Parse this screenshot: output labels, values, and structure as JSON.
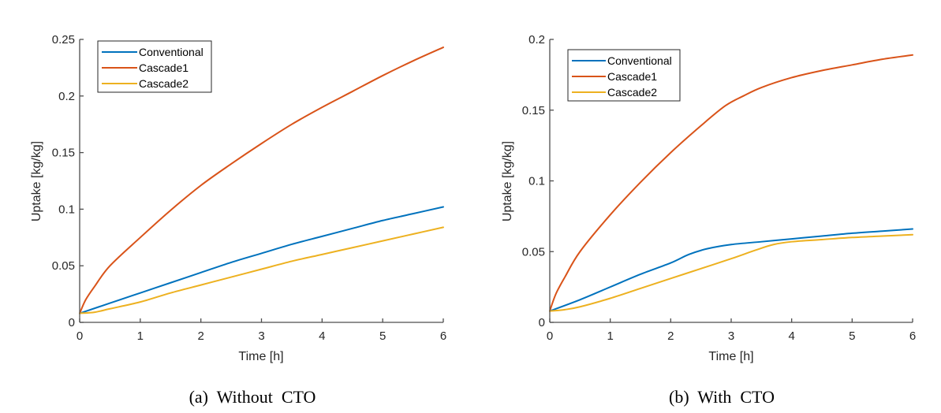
{
  "chart_data": [
    {
      "type": "line",
      "caption": "(a)  Without  CTO",
      "xlabel": "Time [h]",
      "ylabel": "Uptake [kg/kg]",
      "xlim": [
        0,
        6
      ],
      "ylim": [
        0,
        0.25
      ],
      "xticks": [
        0,
        1,
        2,
        3,
        4,
        5,
        6
      ],
      "xtick_labels": [
        "0",
        "1",
        "2",
        "3",
        "4",
        "5",
        "6"
      ],
      "yticks": [
        0,
        0.05,
        0.1,
        0.15,
        0.2,
        0.25
      ],
      "ytick_labels": [
        "0",
        "0.05",
        "0.1",
        "0.15",
        "0.2",
        "0.25"
      ],
      "grid": false,
      "legend_position": "top-left",
      "series": [
        {
          "name": "Conventional",
          "color": "#0072BD",
          "x": [
            0,
            0.5,
            1,
            1.5,
            2,
            2.5,
            3,
            3.5,
            4,
            4.5,
            5,
            5.5,
            6
          ],
          "values": [
            0.008,
            0.017,
            0.026,
            0.035,
            0.044,
            0.053,
            0.061,
            0.069,
            0.076,
            0.083,
            0.09,
            0.096,
            0.102
          ]
        },
        {
          "name": "Cascade1",
          "color": "#D95319",
          "x": [
            0,
            0.1,
            0.25,
            0.5,
            1,
            1.5,
            2,
            2.5,
            3,
            3.5,
            4,
            4.5,
            5,
            5.5,
            6
          ],
          "values": [
            0.008,
            0.02,
            0.032,
            0.05,
            0.075,
            0.099,
            0.121,
            0.14,
            0.158,
            0.175,
            0.19,
            0.204,
            0.218,
            0.231,
            0.243
          ]
        },
        {
          "name": "Cascade2",
          "color": "#EDB120",
          "x": [
            0,
            0.25,
            0.5,
            1,
            1.5,
            2,
            2.5,
            3,
            3.5,
            4,
            4.5,
            5,
            5.5,
            6
          ],
          "values": [
            0.008,
            0.009,
            0.012,
            0.018,
            0.026,
            0.033,
            0.04,
            0.047,
            0.054,
            0.06,
            0.066,
            0.072,
            0.078,
            0.084
          ]
        }
      ]
    },
    {
      "type": "line",
      "caption": "(b)  With  CTO",
      "xlabel": "Time [h]",
      "ylabel": "Uptake [kg/kg]",
      "xlim": [
        0,
        6
      ],
      "ylim": [
        0,
        0.2
      ],
      "xticks": [
        0,
        1,
        2,
        3,
        4,
        5,
        6
      ],
      "xtick_labels": [
        "0",
        "1",
        "2",
        "3",
        "4",
        "5",
        "6"
      ],
      "yticks": [
        0,
        0.05,
        0.1,
        0.15,
        0.2
      ],
      "ytick_labels": [
        "0",
        "0.05",
        "0.1",
        "0.15",
        "0.2"
      ],
      "grid": false,
      "legend_position": "top-left",
      "series": [
        {
          "name": "Conventional",
          "color": "#0072BD",
          "x": [
            0,
            0.5,
            1,
            1.5,
            2,
            2.3,
            2.6,
            3,
            3.5,
            4,
            4.5,
            5,
            5.5,
            6
          ],
          "values": [
            0.008,
            0.016,
            0.025,
            0.034,
            0.042,
            0.048,
            0.052,
            0.055,
            0.057,
            0.059,
            0.061,
            0.063,
            0.0645,
            0.066
          ]
        },
        {
          "name": "Cascade1",
          "color": "#D95319",
          "x": [
            0,
            0.1,
            0.25,
            0.5,
            1,
            1.5,
            2,
            2.5,
            2.9,
            3.2,
            3.5,
            4,
            4.5,
            5,
            5.5,
            6
          ],
          "values": [
            0.008,
            0.02,
            0.032,
            0.05,
            0.076,
            0.099,
            0.12,
            0.139,
            0.153,
            0.16,
            0.166,
            0.173,
            0.178,
            0.182,
            0.186,
            0.189
          ]
        },
        {
          "name": "Cascade2",
          "color": "#EDB120",
          "x": [
            0,
            0.25,
            0.5,
            1,
            1.5,
            2,
            2.5,
            3,
            3.4,
            3.7,
            4,
            4.5,
            5,
            5.5,
            6
          ],
          "values": [
            0.008,
            0.009,
            0.011,
            0.017,
            0.024,
            0.031,
            0.038,
            0.045,
            0.051,
            0.055,
            0.057,
            0.0585,
            0.06,
            0.061,
            0.062
          ]
        }
      ]
    }
  ]
}
